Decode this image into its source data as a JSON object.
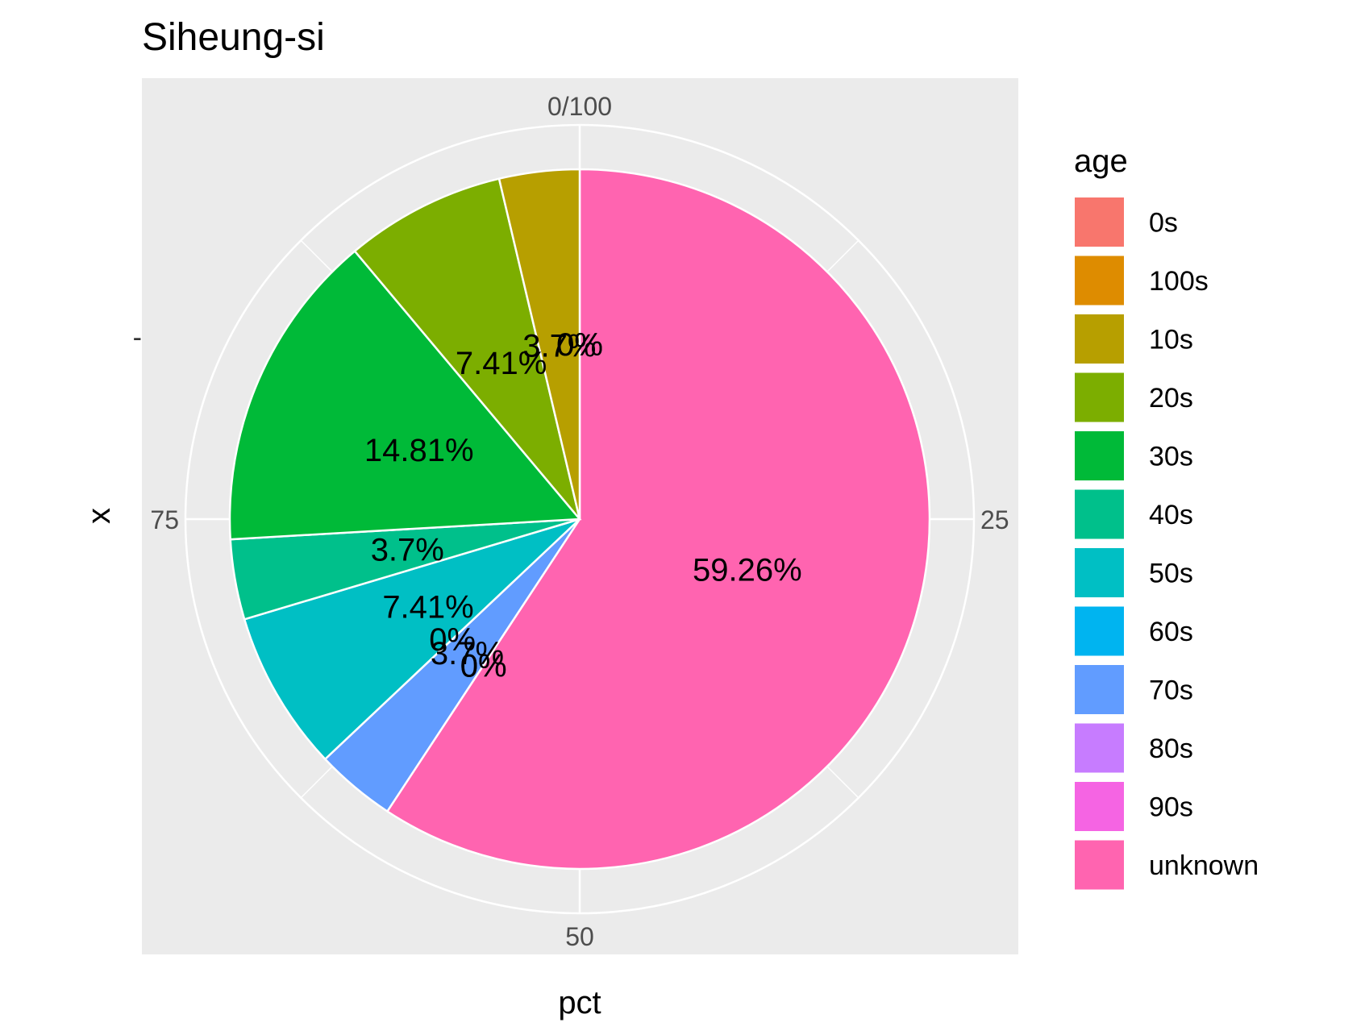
{
  "chart_data": {
    "type": "pie",
    "title": "Siheung-si",
    "xlabel": "pct",
    "ylabel": "x",
    "y_tick_label": "-",
    "theta_ticks": [
      "0/100",
      "25",
      "50",
      "75"
    ],
    "legend_title": "age",
    "legend_position": "right",
    "categories": [
      "0s",
      "100s",
      "10s",
      "20s",
      "30s",
      "40s",
      "50s",
      "60s",
      "70s",
      "80s",
      "90s",
      "unknown"
    ],
    "values": [
      0,
      0,
      3.7,
      7.41,
      14.81,
      3.7,
      7.41,
      0,
      3.7,
      0,
      0,
      59.26
    ],
    "labels": [
      "0%",
      "0%",
      "3.7%",
      "7.41%",
      "14.81%",
      "3.7%",
      "7.41%",
      "0%",
      "3.7%",
      "0%",
      "0%",
      "59.26%"
    ],
    "colors": [
      "#F8766D",
      "#DE8C00",
      "#B79F00",
      "#7CAE00",
      "#00BA38",
      "#00C08B",
      "#00BFC4",
      "#00B4F0",
      "#619CFF",
      "#C77CFF",
      "#F564E3",
      "#FF64B0"
    ],
    "panel_background": "#EBEBEB",
    "grid_color": "#FFFFFF",
    "grid": true
  }
}
